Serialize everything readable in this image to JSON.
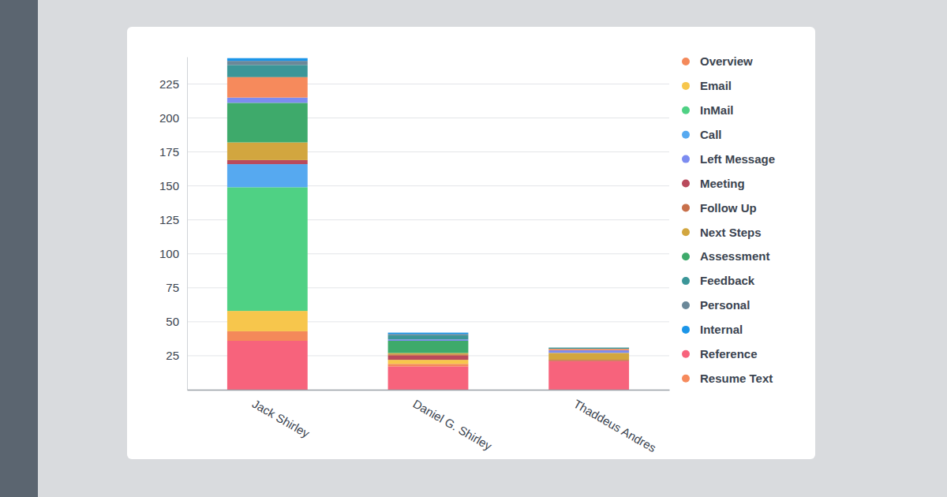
{
  "chart_data": {
    "type": "bar",
    "stacked": true,
    "grid": true,
    "legend": "right",
    "categories": [
      "Jack Shirley",
      "Daniel G. Shirley",
      "Thaddeus Andres"
    ],
    "ylim": [
      0,
      245
    ],
    "yticks": [
      25,
      50,
      75,
      100,
      125,
      150,
      175,
      200,
      225
    ],
    "series": [
      {
        "name": "Overview",
        "color": "#f4895a",
        "values": [
          7,
          2,
          0
        ]
      },
      {
        "name": "Email",
        "color": "#f7c64c",
        "values": [
          15,
          3,
          0
        ]
      },
      {
        "name": "InMail",
        "color": "#4fd184",
        "values": [
          91,
          0,
          0
        ]
      },
      {
        "name": "Call",
        "color": "#56a9f0",
        "values": [
          17,
          0,
          0
        ]
      },
      {
        "name": "Left Message",
        "color": "#7c8cf0",
        "values": [
          4,
          1,
          2
        ]
      },
      {
        "name": "Meeting",
        "color": "#b94a5c",
        "values": [
          3,
          3,
          0
        ]
      },
      {
        "name": "Follow Up",
        "color": "#c8704a",
        "values": [
          0,
          1,
          1
        ]
      },
      {
        "name": "Next Steps",
        "color": "#d2a63f",
        "values": [
          13,
          1,
          5
        ]
      },
      {
        "name": "Assessment",
        "color": "#3eaa6b",
        "values": [
          29,
          9,
          0
        ]
      },
      {
        "name": "Feedback",
        "color": "#3b9698",
        "values": [
          9,
          3,
          1
        ]
      },
      {
        "name": "Personal",
        "color": "#6b8899",
        "values": [
          3,
          1,
          0
        ]
      },
      {
        "name": "Internal",
        "color": "#1b95e8",
        "values": [
          2,
          1,
          0
        ]
      },
      {
        "name": "Reference",
        "color": "#f7637c",
        "values": [
          36,
          17,
          21
        ]
      },
      {
        "name": "Resume Text",
        "color": "#f68a5c",
        "values": [
          15,
          0,
          1
        ]
      }
    ]
  }
}
